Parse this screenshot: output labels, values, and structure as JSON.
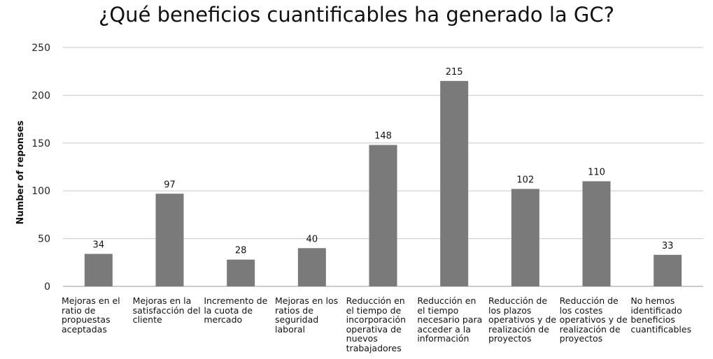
{
  "chart_data": {
    "type": "bar",
    "title": "¿Qué beneficios cuantificables ha generado la GC?",
    "xlabel": "",
    "ylabel": "Number of reponses",
    "ylim": [
      0,
      250
    ],
    "yticks": [
      0,
      50,
      100,
      150,
      200,
      250
    ],
    "grid": true,
    "legend": "none",
    "categories": [
      "Mejoras en el ratio de propuestas aceptadas",
      "Mejoras en la satisfacción del cliente",
      "Incremento de la cuota de mercado",
      "Mejoras en los ratios de seguridad laboral",
      "Reducción en el tiempo de incorporación operativa de nuevos trabajadores",
      "Reducción en el tiempo necesario para acceder a la información",
      "Reducción de los plazos operativos y de realización de proyectos",
      "Reducción de los costes operativos y de realización de proyectos",
      "No hemos identificado beneficios cuantificables"
    ],
    "values": [
      34,
      97,
      28,
      40,
      148,
      215,
      102,
      110,
      33
    ],
    "bar_color": "#7a7a7a",
    "grid_color": "#c8c8c8"
  }
}
